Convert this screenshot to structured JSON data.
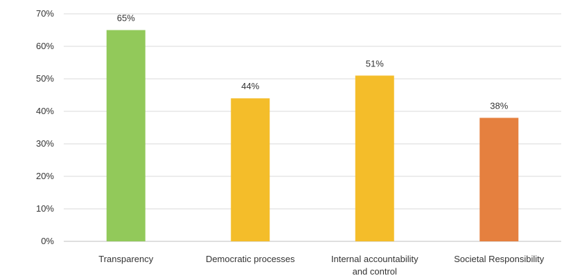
{
  "chart_data": {
    "type": "bar",
    "title": "",
    "xlabel": "",
    "ylabel": "",
    "ylim": [
      0,
      70
    ],
    "yticks": [
      0,
      10,
      20,
      30,
      40,
      50,
      60,
      70
    ],
    "ytick_labels": [
      "0%",
      "10%",
      "20%",
      "30%",
      "40%",
      "50%",
      "60%",
      "70%"
    ],
    "grid": true,
    "legend": "none",
    "categories": [
      [
        "Transparency"
      ],
      [
        "Democratic processes"
      ],
      [
        "Internal accountability",
        "and control"
      ],
      [
        "Societal Responsibility"
      ]
    ],
    "values": [
      65,
      44,
      51,
      38
    ],
    "value_labels": [
      "65%",
      "44%",
      "51%",
      "38%"
    ],
    "colors": [
      "#92c95a",
      "#f4bd2a",
      "#f4bd2a",
      "#e5803f"
    ]
  }
}
